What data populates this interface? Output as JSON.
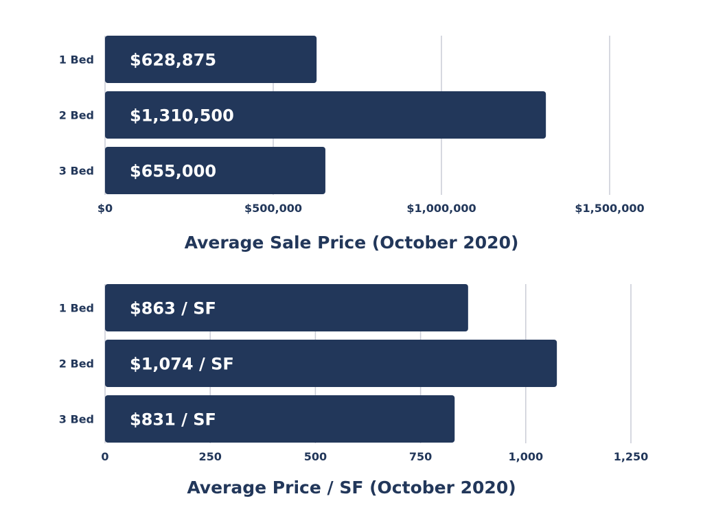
{
  "colors": {
    "bar": "#22375a",
    "text": "#22375a",
    "grid": "#c9ccd6",
    "background": "#ffffff"
  },
  "chart_data": [
    {
      "type": "bar",
      "orientation": "horizontal",
      "title": "Average Sale Price (October 2020)",
      "categories": [
        "1 Bed",
        "2 Bed",
        "3 Bed"
      ],
      "values": [
        628875,
        1310500,
        655000
      ],
      "data_labels": [
        "$628,875",
        "$1,310,500",
        "$655,000"
      ],
      "xlim": [
        0,
        1500000
      ],
      "ticks": [
        0,
        500000,
        1000000,
        1500000
      ],
      "tick_labels": [
        "$0",
        "$500,000",
        "$1,000,000",
        "$1,500,000"
      ],
      "grid": true,
      "legend": "none"
    },
    {
      "type": "bar",
      "orientation": "horizontal",
      "title": "Average Price / SF (October 2020)",
      "categories": [
        "1 Bed",
        "2 Bed",
        "3 Bed"
      ],
      "values": [
        863,
        1074,
        831
      ],
      "data_labels": [
        "$863 / SF",
        "$1,074 / SF",
        "$831 / SF"
      ],
      "xlim": [
        0,
        1250
      ],
      "ticks": [
        0,
        250,
        500,
        750,
        1000,
        1250
      ],
      "tick_labels": [
        "0",
        "250",
        "500",
        "750",
        "1,000",
        "1,250"
      ],
      "grid": true,
      "legend": "none"
    }
  ]
}
